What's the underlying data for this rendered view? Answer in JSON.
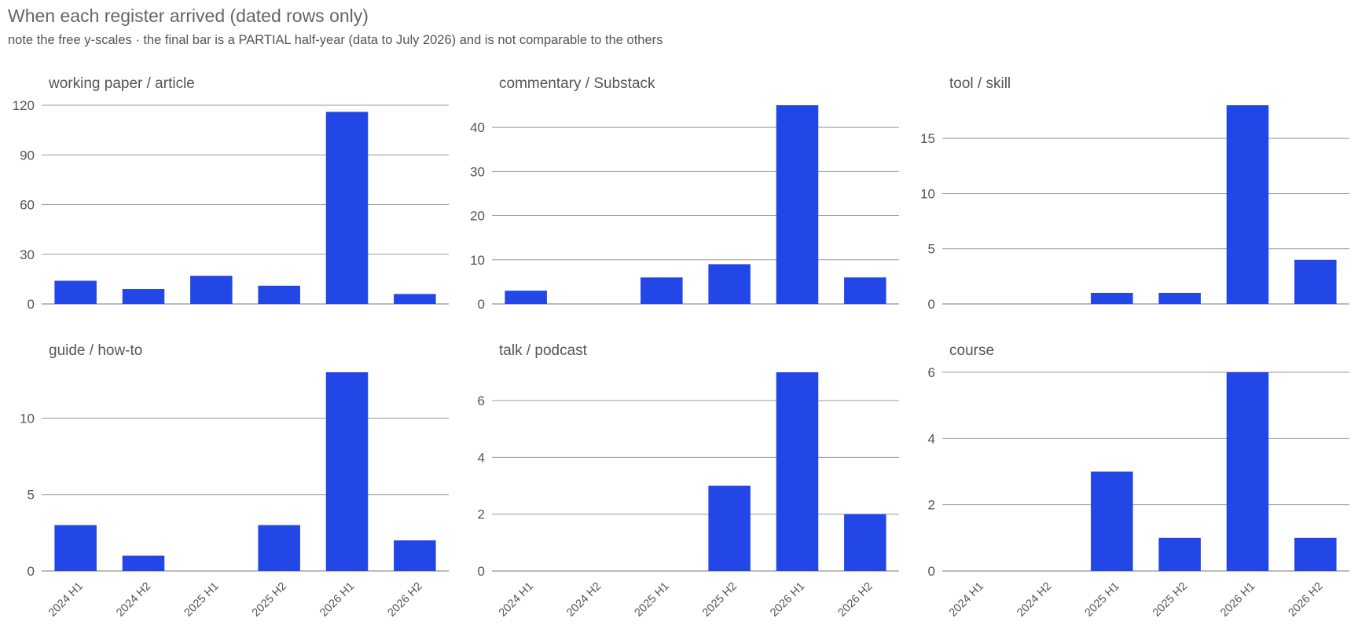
{
  "header": {
    "title": "When each register arrived (dated rows only)",
    "subtitle": "note the free y-scales · the final bar is a PARTIAL half-year (data to July 2026) and is not comparable to the others"
  },
  "colors": {
    "bar": "#2347e6",
    "grid": "#9a9a9a",
    "text": "#555555"
  },
  "chart_data": [
    {
      "type": "bar",
      "title": "working paper / article",
      "categories": [
        "2024 H1",
        "2024 H2",
        "2025 H1",
        "2025 H2",
        "2026 H1",
        "2026 H2"
      ],
      "values": [
        14,
        9,
        17,
        11,
        116,
        6
      ],
      "ylim": [
        0,
        120
      ],
      "yticks": [
        0,
        30,
        60,
        90,
        120
      ],
      "grid": true
    },
    {
      "type": "bar",
      "title": "commentary / Substack",
      "categories": [
        "2024 H1",
        "2024 H2",
        "2025 H1",
        "2025 H2",
        "2026 H1",
        "2026 H2"
      ],
      "values": [
        3,
        0,
        6,
        9,
        45,
        6
      ],
      "ylim": [
        0,
        45
      ],
      "yticks": [
        0,
        10,
        20,
        30,
        40
      ],
      "grid": true
    },
    {
      "type": "bar",
      "title": "tool / skill",
      "categories": [
        "2024 H1",
        "2024 H2",
        "2025 H1",
        "2025 H2",
        "2026 H1",
        "2026 H2"
      ],
      "values": [
        0,
        0,
        1,
        1,
        18,
        4
      ],
      "ylim": [
        0,
        18
      ],
      "yticks": [
        0,
        5,
        10,
        15
      ],
      "grid": true
    },
    {
      "type": "bar",
      "title": "guide / how-to",
      "categories": [
        "2024 H1",
        "2024 H2",
        "2025 H1",
        "2025 H2",
        "2026 H1",
        "2026 H2"
      ],
      "values": [
        3,
        1,
        0,
        3,
        13,
        2
      ],
      "ylim": [
        0,
        13
      ],
      "yticks": [
        0,
        5,
        10
      ],
      "grid": true
    },
    {
      "type": "bar",
      "title": "talk / podcast",
      "categories": [
        "2024 H1",
        "2024 H2",
        "2025 H1",
        "2025 H2",
        "2026 H1",
        "2026 H2"
      ],
      "values": [
        0,
        0,
        0,
        3,
        7,
        2
      ],
      "ylim": [
        0,
        7
      ],
      "yticks": [
        0,
        2,
        4,
        6
      ],
      "grid": true
    },
    {
      "type": "bar",
      "title": "course",
      "categories": [
        "2024 H1",
        "2024 H2",
        "2025 H1",
        "2025 H2",
        "2026 H1",
        "2026 H2"
      ],
      "values": [
        0,
        0,
        3,
        1,
        6,
        1
      ],
      "ylim": [
        0,
        6
      ],
      "yticks": [
        0,
        2,
        4,
        6
      ],
      "grid": true
    }
  ]
}
